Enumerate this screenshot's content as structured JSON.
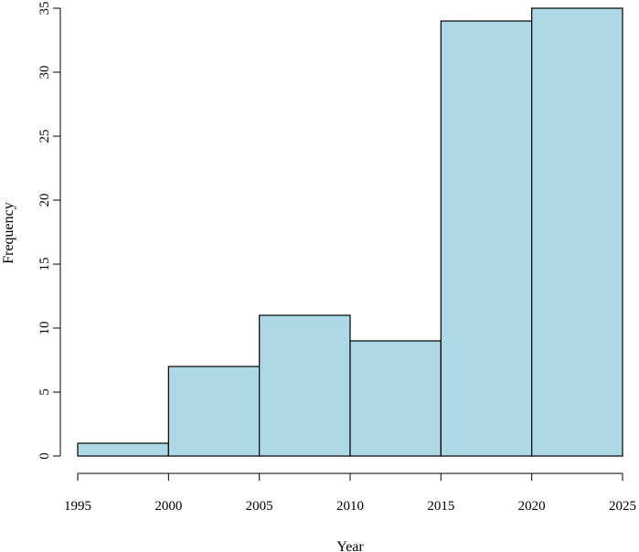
{
  "chart_data": {
    "type": "bar",
    "subtype": "histogram",
    "bins": [
      {
        "start": 1995,
        "end": 2000,
        "value": 1
      },
      {
        "start": 2000,
        "end": 2005,
        "value": 7
      },
      {
        "start": 2005,
        "end": 2010,
        "value": 11
      },
      {
        "start": 2010,
        "end": 2015,
        "value": 9
      },
      {
        "start": 2015,
        "end": 2020,
        "value": 34
      },
      {
        "start": 2020,
        "end": 2025,
        "value": 35
      }
    ],
    "xlabel": "Year",
    "ylabel": "Frequency",
    "xlim": [
      1995,
      2025
    ],
    "ylim": [
      0,
      35
    ],
    "x_ticks": [
      "1995",
      "2000",
      "2005",
      "2010",
      "2015",
      "2020",
      "2025"
    ],
    "y_ticks": [
      "0",
      "5",
      "10",
      "15",
      "20",
      "25",
      "30",
      "35"
    ],
    "bar_color": "#add8e6",
    "edge_color": "#000000",
    "grid": false,
    "legend": "none"
  }
}
